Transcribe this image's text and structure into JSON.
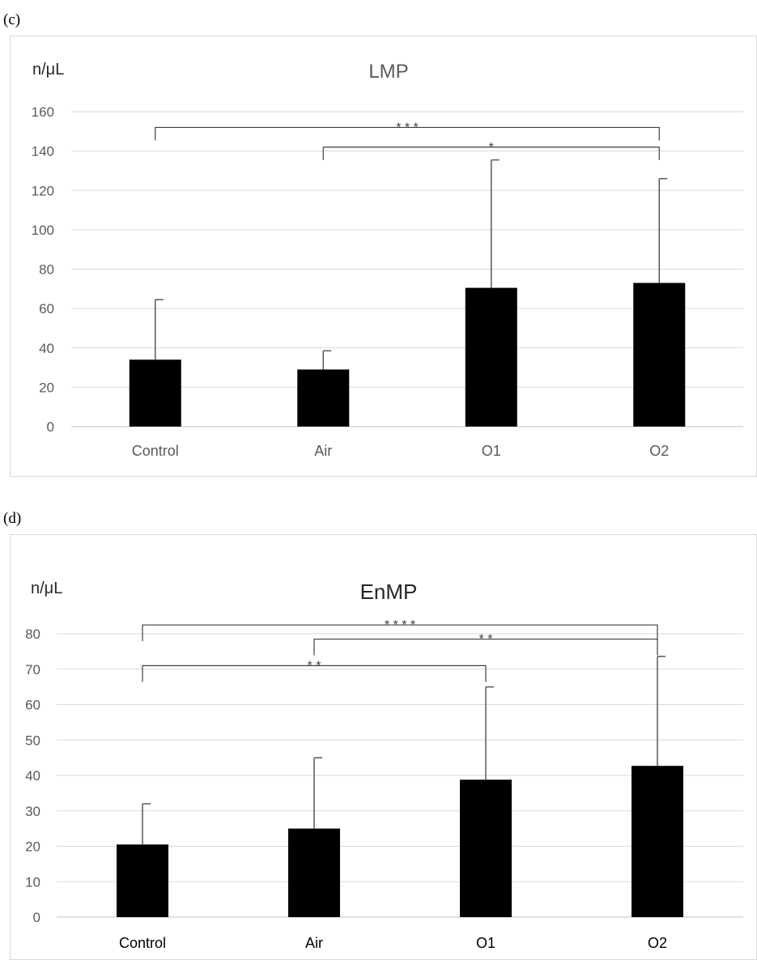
{
  "chart_data": [
    {
      "panel_label": "(c)",
      "type": "bar",
      "title": "LMP",
      "ylabel": "n/μL",
      "categories": [
        "Control",
        "Air",
        "O1",
        "O2"
      ],
      "values": [
        34,
        29,
        70.5,
        73
      ],
      "error_upper": [
        64.5,
        38.5,
        135.5,
        126
      ],
      "ylim": [
        0,
        160
      ],
      "yticks": [
        0,
        20,
        40,
        60,
        80,
        100,
        120,
        140,
        160
      ],
      "grid": true,
      "bar_color": "#000000",
      "significance": [
        {
          "from": 0,
          "to": 3,
          "label": "* * *",
          "level": 152
        },
        {
          "from": 1,
          "to": 3,
          "label": "*",
          "level": 142
        }
      ]
    },
    {
      "panel_label": "(d)",
      "type": "bar",
      "title": "EnMP",
      "ylabel": "n/μL",
      "categories": [
        "Control",
        "Air",
        "O1",
        "O2"
      ],
      "values": [
        20.5,
        25,
        38.8,
        42.7
      ],
      "error_upper": [
        32,
        45,
        65,
        73.6
      ],
      "ylim": [
        0,
        80
      ],
      "yticks": [
        0,
        10,
        20,
        30,
        40,
        50,
        60,
        70,
        80
      ],
      "grid": true,
      "bar_color": "#000000",
      "significance": [
        {
          "from": 0,
          "to": 3,
          "label": "* * * *",
          "level": 82.5
        },
        {
          "from": 1,
          "to": 3,
          "label": "* *",
          "level": 78.5
        },
        {
          "from": 0,
          "to": 2,
          "label": "* *",
          "level": 71
        }
      ]
    }
  ]
}
